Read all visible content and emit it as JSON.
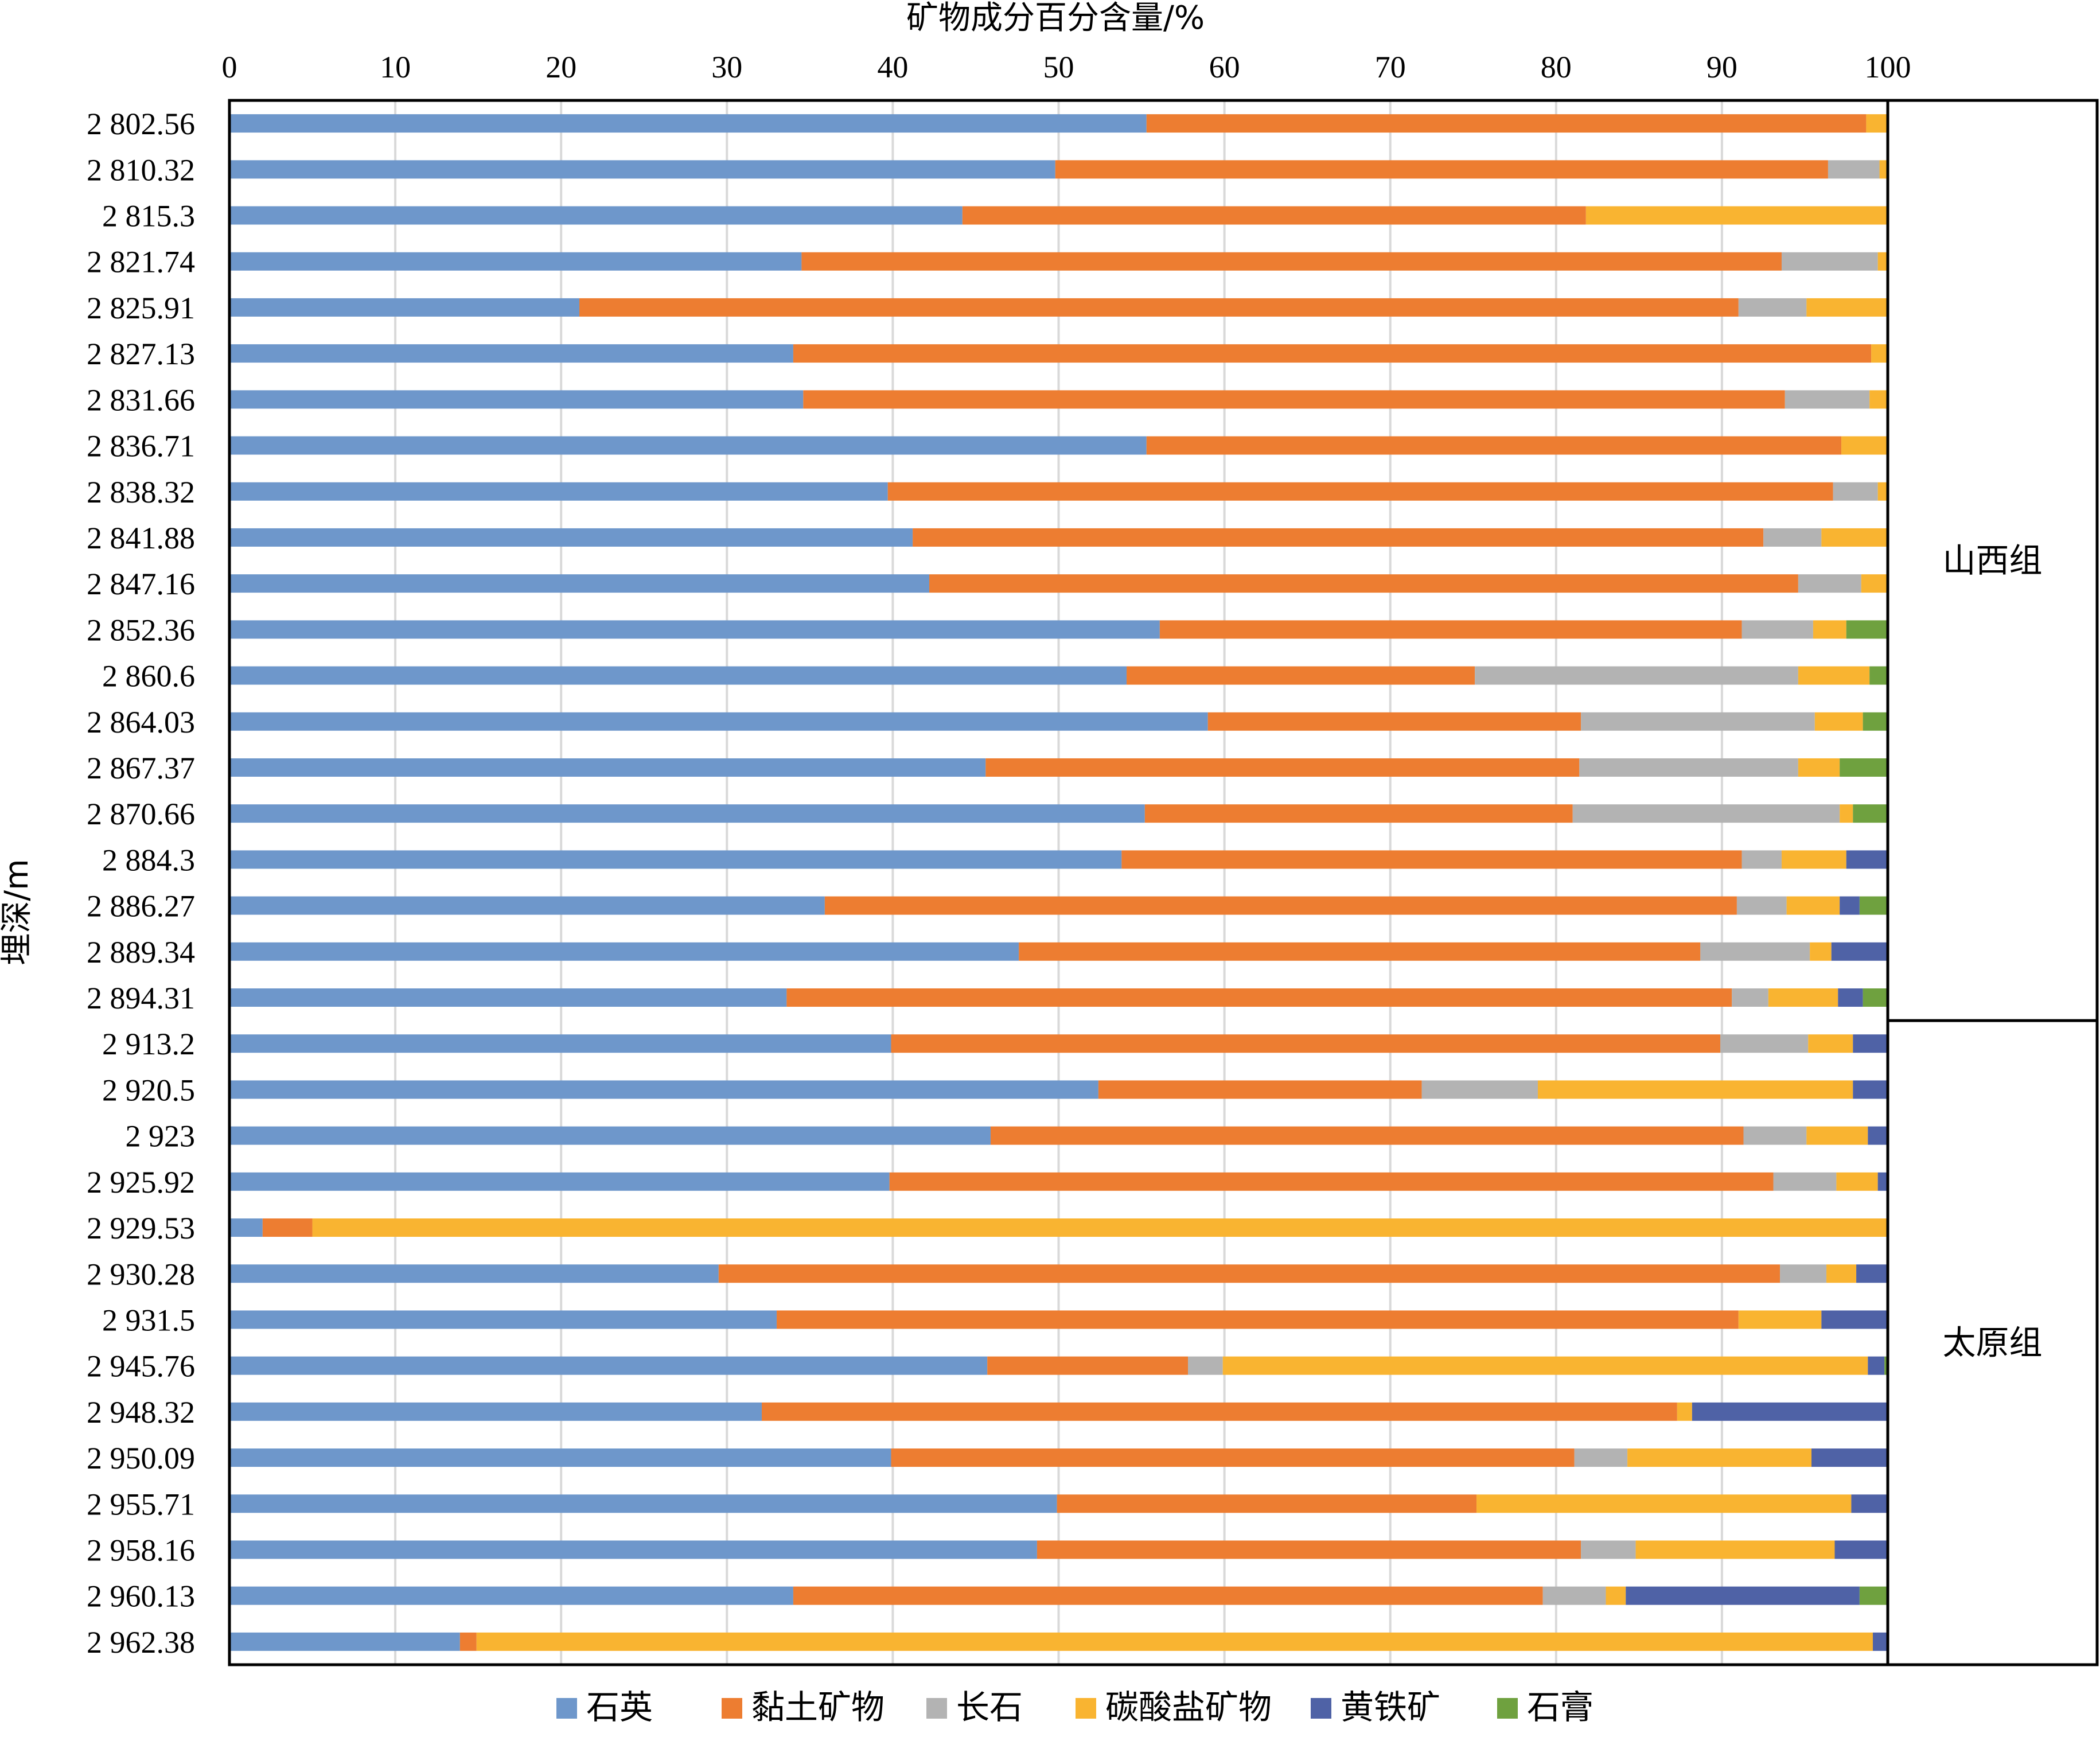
{
  "chart_data": {
    "type": "bar",
    "orientation": "horizontal-stacked-100",
    "xlabel": "矿物成分百分含量/%",
    "ylabel": "埋深/m",
    "xlim": [
      0,
      100
    ],
    "xticks": [
      "0",
      "10",
      "20",
      "30",
      "40",
      "50",
      "60",
      "70",
      "80",
      "90",
      "100"
    ],
    "grid": true,
    "legend_position": "bottom",
    "series": [
      {
        "name": "石英",
        "color": "#6E97CB"
      },
      {
        "name": "黏土矿物",
        "color": "#ED7D31"
      },
      {
        "name": "长石",
        "color": "#B3B3B3"
      },
      {
        "name": "碳酸盐矿物",
        "color": "#F9B431"
      },
      {
        "name": "黄铁矿",
        "color": "#4F62A6"
      },
      {
        "name": "石膏",
        "color": "#6FA13F"
      }
    ],
    "categories": [
      "2 802.56",
      "2 810.32",
      "2 815.3",
      "2 821.74",
      "2 825.91",
      "2 827.13",
      "2 831.66",
      "2 836.71",
      "2 838.32",
      "2 841.88",
      "2 847.16",
      "2 852.36",
      "2 860.6",
      "2 864.03",
      "2 867.37",
      "2 870.66",
      "2 884.3",
      "2 886.27",
      "2 889.34",
      "2 894.31",
      "2 913.2",
      "2 920.5",
      "2 923",
      "2 925.92",
      "2 929.53",
      "2 930.28",
      "2 931.5",
      "2 945.76",
      "2 948.32",
      "2 950.09",
      "2 955.71",
      "2 958.16",
      "2 960.13",
      "2 962.38"
    ],
    "values": [
      [
        55.3,
        43.4,
        0,
        1.3,
        0,
        0
      ],
      [
        49.8,
        46.6,
        3.1,
        0.5,
        0,
        0
      ],
      [
        44.2,
        37.6,
        0,
        18.2,
        0,
        0
      ],
      [
        34.5,
        59.1,
        5.8,
        0.6,
        0,
        0
      ],
      [
        21.1,
        69.9,
        4.1,
        4.9,
        0,
        0
      ],
      [
        34.0,
        65.0,
        0,
        1.0,
        0,
        0
      ],
      [
        34.6,
        59.2,
        5.1,
        1.1,
        0,
        0
      ],
      [
        55.3,
        41.9,
        0,
        2.8,
        0,
        0
      ],
      [
        39.7,
        57.0,
        2.7,
        0.6,
        0,
        0
      ],
      [
        41.2,
        51.3,
        3.5,
        4.0,
        0,
        0
      ],
      [
        42.2,
        52.4,
        3.8,
        1.6,
        0,
        0
      ],
      [
        56.1,
        35.1,
        4.3,
        2.0,
        0,
        2.5
      ],
      [
        54.1,
        21.0,
        19.5,
        4.3,
        0,
        1.1
      ],
      [
        59.0,
        22.5,
        14.1,
        2.9,
        0,
        1.5
      ],
      [
        45.6,
        35.8,
        13.2,
        2.5,
        0,
        2.9
      ],
      [
        55.2,
        25.8,
        16.1,
        0.8,
        0,
        2.1
      ],
      [
        53.8,
        37.4,
        2.4,
        3.9,
        2.5,
        0
      ],
      [
        35.9,
        55.0,
        3.0,
        3.2,
        1.2,
        1.7
      ],
      [
        47.6,
        41.1,
        6.6,
        1.3,
        3.4,
        0
      ],
      [
        33.6,
        57.0,
        2.2,
        4.2,
        1.5,
        1.5
      ],
      [
        39.9,
        50.0,
        5.3,
        2.7,
        2.1,
        0
      ],
      [
        52.4,
        19.5,
        7.0,
        19.0,
        2.1,
        0
      ],
      [
        45.9,
        45.4,
        3.8,
        3.7,
        1.2,
        0
      ],
      [
        39.8,
        53.3,
        3.8,
        2.5,
        0.6,
        0
      ],
      [
        2.0,
        3.0,
        0,
        95.0,
        0,
        0
      ],
      [
        29.5,
        64.0,
        2.8,
        1.8,
        1.9,
        0
      ],
      [
        33.0,
        58.0,
        0,
        5.0,
        4.0,
        0
      ],
      [
        45.7,
        12.1,
        2.1,
        38.9,
        1.0,
        0.2
      ],
      [
        32.1,
        55.2,
        0,
        0.9,
        11.8,
        0
      ],
      [
        39.9,
        41.2,
        3.2,
        11.1,
        4.6,
        0
      ],
      [
        49.9,
        25.3,
        0,
        22.6,
        2.2,
        0
      ],
      [
        48.7,
        32.8,
        3.3,
        12.0,
        3.2,
        0
      ],
      [
        34.0,
        45.2,
        3.8,
        1.2,
        14.1,
        1.7
      ],
      [
        13.9,
        1.0,
        0,
        84.2,
        0.9,
        0
      ]
    ],
    "groups": [
      {
        "label": "山西组",
        "first_index": 0,
        "last_index": 19
      },
      {
        "label": "太原组",
        "first_index": 20,
        "last_index": 33
      }
    ]
  }
}
